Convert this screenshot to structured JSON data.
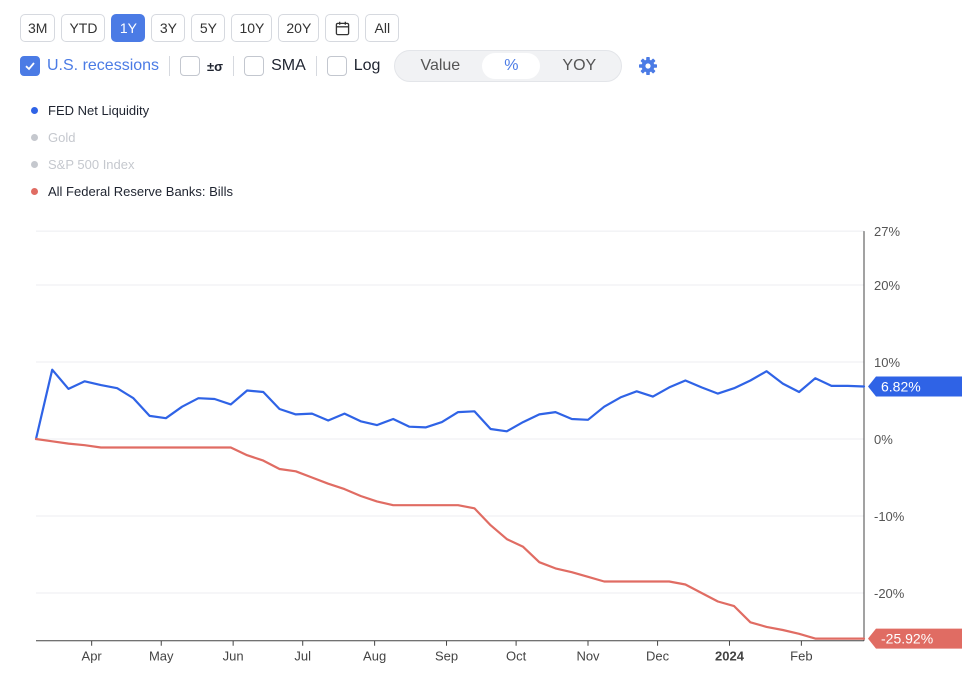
{
  "toolbar": {
    "ranges": [
      "3M",
      "YTD",
      "1Y",
      "3Y",
      "5Y",
      "10Y",
      "20Y",
      "All"
    ],
    "active_range": "1Y",
    "calendar_icon": "calendar-icon",
    "options": {
      "recessions": {
        "label": "U.S. recessions",
        "checked": true
      },
      "sigma": {
        "label": "±σ",
        "checked": false
      },
      "sma": {
        "label": "SMA",
        "checked": false
      },
      "log": {
        "label": "Log",
        "checked": false
      }
    },
    "modes": [
      "Value",
      "%",
      "YOY"
    ],
    "active_mode": "%",
    "settings_icon": "gear-icon"
  },
  "legend": [
    {
      "name": "FED Net Liquidity",
      "color": "#2f63e6",
      "active": true
    },
    {
      "name": "Gold",
      "color": "#c5c8ce",
      "active": false
    },
    {
      "name": "S&P 500 Index",
      "color": "#c5c8ce",
      "active": false
    },
    {
      "name": "All Federal Reserve Banks: Bills",
      "color": "#e06c63",
      "active": true
    }
  ],
  "chart_data": {
    "type": "line",
    "ylim": [
      -26.2,
      27
    ],
    "y_ticks": [
      {
        "value": 27,
        "label": "27%"
      },
      {
        "value": 20,
        "label": "20%"
      },
      {
        "value": 10,
        "label": "10%"
      },
      {
        "value": 0,
        "label": "0%"
      },
      {
        "value": -10,
        "label": "-10%"
      },
      {
        "value": -20,
        "label": "-20%"
      }
    ],
    "x_ticks": [
      {
        "label": "Apr",
        "date": "2023-04-01",
        "bold": false
      },
      {
        "label": "May",
        "date": "2023-05-01",
        "bold": false
      },
      {
        "label": "Jun",
        "date": "2023-06-01",
        "bold": false
      },
      {
        "label": "Jul",
        "date": "2023-07-01",
        "bold": false
      },
      {
        "label": "Aug",
        "date": "2023-08-01",
        "bold": false
      },
      {
        "label": "Sep",
        "date": "2023-09-01",
        "bold": false
      },
      {
        "label": "Oct",
        "date": "2023-10-01",
        "bold": false
      },
      {
        "label": "Nov",
        "date": "2023-11-01",
        "bold": false
      },
      {
        "label": "Dec",
        "date": "2023-12-01",
        "bold": false
      },
      {
        "label": "2024",
        "date": "2024-01-01",
        "bold": true
      },
      {
        "label": "Feb",
        "date": "2024-02-01",
        "bold": false
      }
    ],
    "x_range": [
      "2023-03-08",
      "2024-02-28"
    ],
    "series": [
      {
        "name": "FED Net Liquidity",
        "color": "#2f63e6",
        "last_label": "6.82%",
        "points": [
          [
            "2023-03-08",
            0.0
          ],
          [
            "2023-03-15",
            9.0
          ],
          [
            "2023-03-22",
            6.5
          ],
          [
            "2023-03-29",
            7.5
          ],
          [
            "2023-04-05",
            7.0
          ],
          [
            "2023-04-12",
            6.6
          ],
          [
            "2023-04-19",
            5.3
          ],
          [
            "2023-04-26",
            3.0
          ],
          [
            "2023-05-03",
            2.7
          ],
          [
            "2023-05-10",
            4.2
          ],
          [
            "2023-05-17",
            5.3
          ],
          [
            "2023-05-24",
            5.2
          ],
          [
            "2023-05-31",
            4.5
          ],
          [
            "2023-06-07",
            6.3
          ],
          [
            "2023-06-14",
            6.1
          ],
          [
            "2023-06-21",
            3.9
          ],
          [
            "2023-06-28",
            3.2
          ],
          [
            "2023-07-05",
            3.3
          ],
          [
            "2023-07-12",
            2.4
          ],
          [
            "2023-07-19",
            3.3
          ],
          [
            "2023-07-26",
            2.3
          ],
          [
            "2023-08-02",
            1.8
          ],
          [
            "2023-08-09",
            2.6
          ],
          [
            "2023-08-16",
            1.6
          ],
          [
            "2023-08-23",
            1.5
          ],
          [
            "2023-08-30",
            2.2
          ],
          [
            "2023-09-06",
            3.5
          ],
          [
            "2023-09-13",
            3.6
          ],
          [
            "2023-09-20",
            1.3
          ],
          [
            "2023-09-27",
            1.0
          ],
          [
            "2023-10-04",
            2.2
          ],
          [
            "2023-10-11",
            3.2
          ],
          [
            "2023-10-18",
            3.5
          ],
          [
            "2023-10-25",
            2.6
          ],
          [
            "2023-11-01",
            2.5
          ],
          [
            "2023-11-08",
            4.2
          ],
          [
            "2023-11-15",
            5.4
          ],
          [
            "2023-11-22",
            6.2
          ],
          [
            "2023-11-29",
            5.5
          ],
          [
            "2023-12-06",
            6.7
          ],
          [
            "2023-12-13",
            7.6
          ],
          [
            "2023-12-20",
            6.7
          ],
          [
            "2023-12-27",
            5.9
          ],
          [
            "2024-01-03",
            6.6
          ],
          [
            "2024-01-10",
            7.6
          ],
          [
            "2024-01-17",
            8.8
          ],
          [
            "2024-01-24",
            7.2
          ],
          [
            "2024-01-31",
            6.1
          ],
          [
            "2024-02-07",
            7.9
          ],
          [
            "2024-02-14",
            6.9
          ],
          [
            "2024-02-21",
            6.9
          ],
          [
            "2024-02-28",
            6.82
          ]
        ]
      },
      {
        "name": "All Federal Reserve Banks: Bills",
        "color": "#e06c63",
        "last_label": "-25.92%",
        "points": [
          [
            "2023-03-08",
            0.0
          ],
          [
            "2023-03-15",
            -0.3
          ],
          [
            "2023-03-22",
            -0.6
          ],
          [
            "2023-03-29",
            -0.8
          ],
          [
            "2023-04-05",
            -1.1
          ],
          [
            "2023-04-12",
            -1.1
          ],
          [
            "2023-04-19",
            -1.1
          ],
          [
            "2023-04-26",
            -1.1
          ],
          [
            "2023-05-03",
            -1.1
          ],
          [
            "2023-05-10",
            -1.1
          ],
          [
            "2023-05-17",
            -1.1
          ],
          [
            "2023-05-24",
            -1.1
          ],
          [
            "2023-05-31",
            -1.1
          ],
          [
            "2023-06-07",
            -2.1
          ],
          [
            "2023-06-14",
            -2.8
          ],
          [
            "2023-06-21",
            -3.9
          ],
          [
            "2023-06-28",
            -4.2
          ],
          [
            "2023-07-05",
            -5.0
          ],
          [
            "2023-07-12",
            -5.8
          ],
          [
            "2023-07-19",
            -6.5
          ],
          [
            "2023-07-26",
            -7.4
          ],
          [
            "2023-08-02",
            -8.1
          ],
          [
            "2023-08-09",
            -8.6
          ],
          [
            "2023-08-16",
            -8.6
          ],
          [
            "2023-08-23",
            -8.6
          ],
          [
            "2023-08-30",
            -8.6
          ],
          [
            "2023-09-06",
            -8.6
          ],
          [
            "2023-09-13",
            -9.0
          ],
          [
            "2023-09-20",
            -11.2
          ],
          [
            "2023-09-27",
            -13.0
          ],
          [
            "2023-10-04",
            -14.0
          ],
          [
            "2023-10-11",
            -16.0
          ],
          [
            "2023-10-18",
            -16.8
          ],
          [
            "2023-10-25",
            -17.3
          ],
          [
            "2023-11-01",
            -17.9
          ],
          [
            "2023-11-08",
            -18.5
          ],
          [
            "2023-11-15",
            -18.5
          ],
          [
            "2023-11-22",
            -18.5
          ],
          [
            "2023-11-29",
            -18.5
          ],
          [
            "2023-12-06",
            -18.5
          ],
          [
            "2023-12-13",
            -18.9
          ],
          [
            "2023-12-20",
            -20.0
          ],
          [
            "2023-12-27",
            -21.1
          ],
          [
            "2024-01-03",
            -21.7
          ],
          [
            "2024-01-10",
            -23.8
          ],
          [
            "2024-01-17",
            -24.4
          ],
          [
            "2024-01-24",
            -24.8
          ],
          [
            "2024-01-31",
            -25.3
          ],
          [
            "2024-02-07",
            -25.92
          ],
          [
            "2024-02-14",
            -25.92
          ],
          [
            "2024-02-21",
            -25.92
          ],
          [
            "2024-02-28",
            -25.92
          ]
        ]
      }
    ]
  }
}
